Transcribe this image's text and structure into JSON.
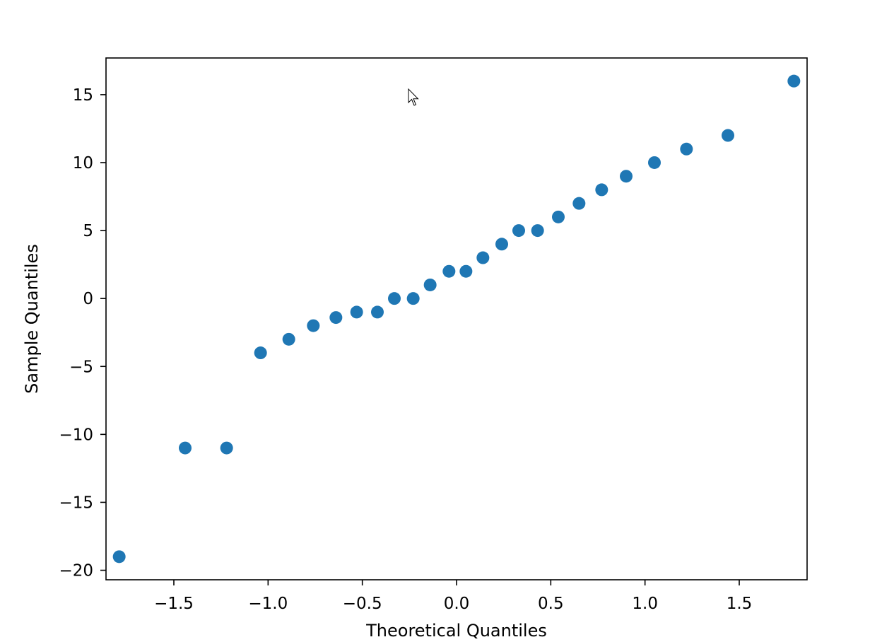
{
  "chart_data": {
    "type": "scatter",
    "title": "",
    "xlabel": "Theoretical Quantiles",
    "ylabel": "Sample Quantiles",
    "xlim": [
      -1.86,
      1.86
    ],
    "ylim": [
      -20.7,
      17.7
    ],
    "xticks": [
      -1.5,
      -1.0,
      -0.5,
      0.0,
      0.5,
      1.0,
      1.5
    ],
    "xtick_labels": [
      "−1.5",
      "−1.0",
      "−0.5",
      "0.0",
      "0.5",
      "1.0",
      "1.5"
    ],
    "yticks": [
      15,
      10,
      5,
      0,
      -5,
      -10,
      -15,
      -20
    ],
    "ytick_labels": [
      "15",
      "10",
      "5",
      "0",
      "−5",
      "−10",
      "−15",
      "−20"
    ],
    "grid": false,
    "marker_color": "#1f77b4",
    "points": [
      {
        "x": -1.79,
        "y": -19
      },
      {
        "x": -1.44,
        "y": -11
      },
      {
        "x": -1.22,
        "y": -11
      },
      {
        "x": -1.04,
        "y": -4
      },
      {
        "x": -0.89,
        "y": -3
      },
      {
        "x": -0.76,
        "y": -2
      },
      {
        "x": -0.64,
        "y": -1.4
      },
      {
        "x": -0.53,
        "y": -1
      },
      {
        "x": -0.42,
        "y": -1
      },
      {
        "x": -0.33,
        "y": 0
      },
      {
        "x": -0.23,
        "y": 0
      },
      {
        "x": -0.14,
        "y": 1
      },
      {
        "x": -0.04,
        "y": 2
      },
      {
        "x": 0.05,
        "y": 2
      },
      {
        "x": 0.14,
        "y": 3
      },
      {
        "x": 0.24,
        "y": 4
      },
      {
        "x": 0.33,
        "y": 5
      },
      {
        "x": 0.43,
        "y": 5
      },
      {
        "x": 0.54,
        "y": 6
      },
      {
        "x": 0.65,
        "y": 7
      },
      {
        "x": 0.77,
        "y": 8
      },
      {
        "x": 0.9,
        "y": 9
      },
      {
        "x": 1.05,
        "y": 10
      },
      {
        "x": 1.22,
        "y": 11
      },
      {
        "x": 1.44,
        "y": 12
      },
      {
        "x": 1.79,
        "y": 16
      }
    ]
  }
}
